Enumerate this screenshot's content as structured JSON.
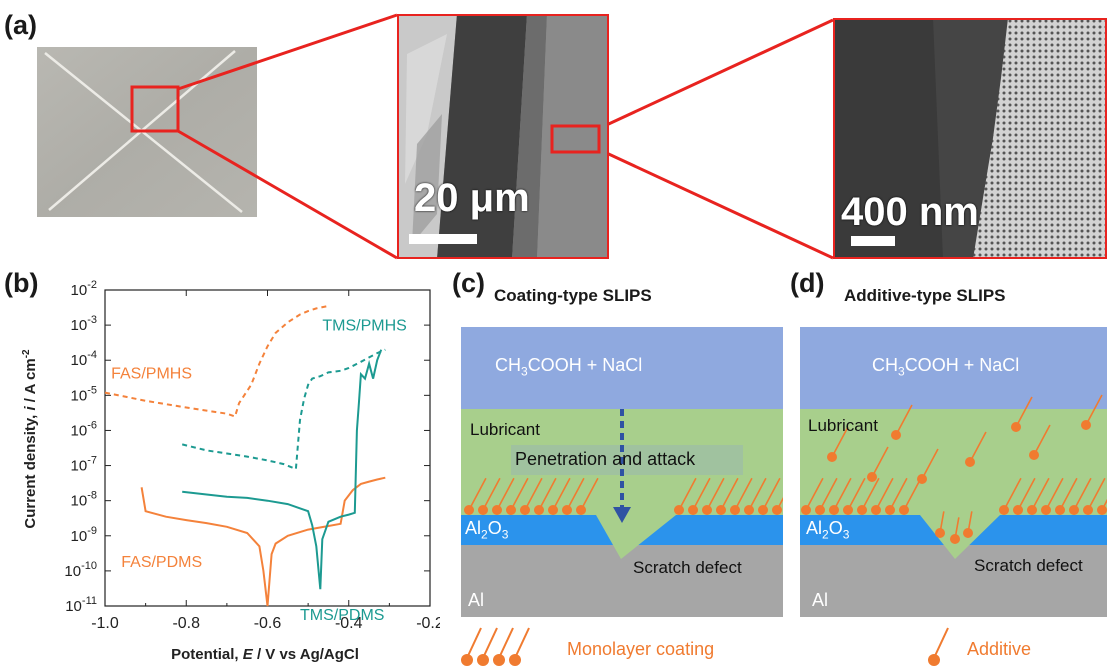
{
  "panels": {
    "a": {
      "letter": "(a)",
      "scale_bar_1": "20 μm",
      "scale_bar_2": "400 nm"
    },
    "b": {
      "letter": "(b)",
      "ylabel_pre": "Current density, ",
      "ylabel_var": "i",
      "ylabel_post": " / A cm",
      "ylabel_exp": "-2",
      "xlabel_pre": "Potential, ",
      "xlabel_var": "E",
      "xlabel_post": " / V vs Ag/AgCl"
    },
    "c": {
      "letter": "(c)",
      "title": "Coating-type SLIPS",
      "electrolyte_pre": "CH",
      "electrolyte_sub1": "3",
      "electrolyte_mid": "COOH + NaCl",
      "lubricant": "Lubricant",
      "penetration": "Penetration and attack",
      "oxide_pre": "Al",
      "oxide_sub1": "2",
      "oxide_mid": "O",
      "oxide_sub2": "3",
      "scratch": "Scratch defect",
      "metal": "Al",
      "legend": "Monolayer coating"
    },
    "d": {
      "letter": "(d)",
      "title": "Additive-type SLIPS",
      "electrolyte_pre": "CH",
      "electrolyte_sub1": "3",
      "electrolyte_mid": "COOH + NaCl",
      "lubricant": "Lubricant",
      "oxide_pre": "Al",
      "oxide_sub1": "2",
      "oxide_mid": "O",
      "oxide_sub2": "3",
      "scratch": "Scratch defect",
      "metal": "Al",
      "legend": "Additive"
    }
  },
  "colors": {
    "highlight": "#e8231f",
    "fas": "#f4823b",
    "tms": "#1c9a91",
    "electrolyte": "#8fa9df",
    "lubricant": "#a8cf8c",
    "oxide": "#2b93ec",
    "metal": "#a6a6a6",
    "molecule": "#f07b30",
    "arrow": "#2f52a3"
  },
  "chart_data": {
    "type": "line",
    "xlabel": "Potential, E / V vs Ag/AgCl",
    "ylabel": "Current density, i / A cm-2",
    "xlim": [
      -1.0,
      -0.2
    ],
    "ylim": [
      1e-11,
      0.01
    ],
    "y_scale": "log",
    "x_ticks": [
      "-1.0",
      "-0.8",
      "-0.6",
      "-0.4",
      "-0.2"
    ],
    "y_ticks": [
      "10^-11",
      "10^-10",
      "10^-9",
      "10^-8",
      "10^-7",
      "10^-6",
      "10^-5",
      "10^-4",
      "10^-3",
      "10^-2"
    ],
    "series": [
      {
        "name": "FAS/PMHS",
        "style": "dashed",
        "x": [
          -1.0,
          -0.9,
          -0.8,
          -0.7,
          -0.68,
          -0.67,
          -0.64,
          -0.62,
          -0.6,
          -0.58,
          -0.55,
          -0.52,
          -0.5,
          -0.48,
          -0.45
        ],
        "y": [
          1.2e-05,
          7e-06,
          4.5e-06,
          3e-06,
          2.5e-06,
          6e-06,
          2e-05,
          8e-05,
          0.00025,
          0.0006,
          0.0012,
          0.002,
          0.0025,
          0.003,
          0.0035
        ]
      },
      {
        "name": "TMS/PMHS",
        "style": "dashed",
        "x": [
          -0.81,
          -0.75,
          -0.7,
          -0.65,
          -0.6,
          -0.56,
          -0.53,
          -0.52,
          -0.51,
          -0.5,
          -0.49,
          -0.47,
          -0.45,
          -0.42,
          -0.4,
          -0.37,
          -0.35,
          -0.33,
          -0.31
        ],
        "y": [
          4e-07,
          2.7e-07,
          2.2e-07,
          1.8e-07,
          1.4e-07,
          1.1e-07,
          8e-08,
          2e-06,
          8e-06,
          2e-05,
          3e-05,
          3.5e-05,
          4.5e-05,
          5e-05,
          6e-05,
          9e-05,
          0.00012,
          0.00016,
          0.0002
        ]
      },
      {
        "name": "FAS/PDMS",
        "style": "solid",
        "x": [
          -0.91,
          -0.9,
          -0.85,
          -0.8,
          -0.75,
          -0.7,
          -0.65,
          -0.62,
          -0.61,
          -0.6,
          -0.59,
          -0.58,
          -0.55,
          -0.5,
          -0.45,
          -0.42,
          -0.41,
          -0.39,
          -0.37,
          -0.35,
          -0.33,
          -0.31
        ],
        "y": [
          2.4e-08,
          5e-09,
          3.5e-09,
          2.8e-09,
          2.3e-09,
          1.8e-09,
          1.2e-09,
          5e-10,
          1e-10,
          1e-11,
          3e-10,
          6e-10,
          1e-09,
          1.5e-09,
          1.9e-09,
          2.2e-09,
          1e-08,
          2e-08,
          3e-08,
          3.5e-08,
          4e-08,
          4.5e-08
        ]
      },
      {
        "name": "TMS/PDMS",
        "style": "solid",
        "x": [
          -0.81,
          -0.75,
          -0.7,
          -0.65,
          -0.6,
          -0.55,
          -0.5,
          -0.49,
          -0.48,
          -0.47,
          -0.465,
          -0.45,
          -0.42,
          -0.4,
          -0.385,
          -0.38,
          -0.375,
          -0.37,
          -0.36,
          -0.35,
          -0.34,
          -0.33,
          -0.32
        ],
        "y": [
          1.8e-08,
          1.5e-08,
          1.3e-08,
          1.2e-08,
          1e-08,
          8e-09,
          5e-09,
          2e-09,
          5e-10,
          3e-11,
          8e-10,
          2.5e-09,
          3.5e-09,
          4e-09,
          4.5e-09,
          1e-06,
          6e-06,
          4e-05,
          3e-05,
          8e-05,
          3e-05,
          0.0001,
          0.0002
        ]
      }
    ],
    "annotations": [
      "FAS/PMHS",
      "TMS/PMHS",
      "FAS/PDMS",
      "TMS/PDMS"
    ]
  }
}
